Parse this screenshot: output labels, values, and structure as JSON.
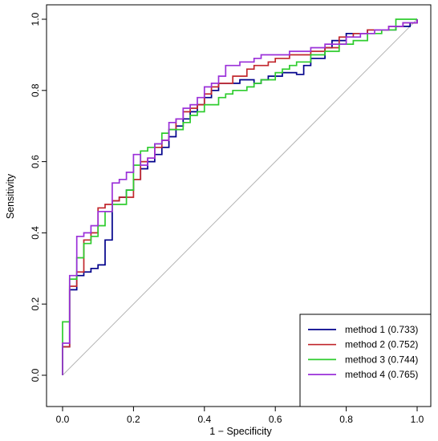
{
  "chart_data": {
    "type": "line",
    "xlabel": "1 − Specificity",
    "ylabel": "Sensitivity",
    "xlim": [
      0,
      1
    ],
    "ylim": [
      0,
      1
    ],
    "x_ticks": [
      "0.0",
      "0.2",
      "0.4",
      "0.6",
      "0.8",
      "1.0"
    ],
    "y_ticks": [
      "0.0",
      "0.2",
      "0.4",
      "0.6",
      "0.8",
      "1.0"
    ],
    "grid": false,
    "legend": "bottom-right",
    "reference_line": {
      "from": [
        0,
        0
      ],
      "to": [
        1,
        1
      ],
      "color": "#b4b4b4"
    },
    "series": [
      {
        "name": "method 1 (0.733)",
        "color": "#00008b",
        "points": [
          [
            0,
            0
          ],
          [
            0,
            0.08
          ],
          [
            0.02,
            0.08
          ],
          [
            0.02,
            0.24
          ],
          [
            0.04,
            0.24
          ],
          [
            0.04,
            0.28
          ],
          [
            0.06,
            0.28
          ],
          [
            0.06,
            0.29
          ],
          [
            0.08,
            0.29
          ],
          [
            0.08,
            0.3
          ],
          [
            0.1,
            0.3
          ],
          [
            0.1,
            0.31
          ],
          [
            0.12,
            0.31
          ],
          [
            0.12,
            0.38
          ],
          [
            0.14,
            0.38
          ],
          [
            0.14,
            0.49
          ],
          [
            0.16,
            0.49
          ],
          [
            0.16,
            0.5
          ],
          [
            0.18,
            0.5
          ],
          [
            0.18,
            0.52
          ],
          [
            0.2,
            0.52
          ],
          [
            0.2,
            0.55
          ],
          [
            0.22,
            0.55
          ],
          [
            0.22,
            0.58
          ],
          [
            0.24,
            0.58
          ],
          [
            0.24,
            0.6
          ],
          [
            0.26,
            0.6
          ],
          [
            0.26,
            0.62
          ],
          [
            0.28,
            0.62
          ],
          [
            0.28,
            0.64
          ],
          [
            0.3,
            0.64
          ],
          [
            0.3,
            0.67
          ],
          [
            0.32,
            0.67
          ],
          [
            0.32,
            0.7
          ],
          [
            0.34,
            0.7
          ],
          [
            0.34,
            0.72
          ],
          [
            0.36,
            0.72
          ],
          [
            0.36,
            0.74
          ],
          [
            0.38,
            0.74
          ],
          [
            0.38,
            0.76
          ],
          [
            0.4,
            0.76
          ],
          [
            0.4,
            0.78
          ],
          [
            0.42,
            0.78
          ],
          [
            0.42,
            0.8
          ],
          [
            0.44,
            0.8
          ],
          [
            0.44,
            0.82
          ],
          [
            0.5,
            0.82
          ],
          [
            0.5,
            0.83
          ],
          [
            0.54,
            0.83
          ],
          [
            0.54,
            0.82
          ],
          [
            0.56,
            0.82
          ],
          [
            0.56,
            0.83
          ],
          [
            0.58,
            0.83
          ],
          [
            0.58,
            0.84
          ],
          [
            0.62,
            0.84
          ],
          [
            0.62,
            0.85
          ],
          [
            0.66,
            0.85
          ],
          [
            0.66,
            0.845
          ],
          [
            0.68,
            0.845
          ],
          [
            0.68,
            0.87
          ],
          [
            0.7,
            0.87
          ],
          [
            0.7,
            0.89
          ],
          [
            0.74,
            0.89
          ],
          [
            0.74,
            0.92
          ],
          [
            0.76,
            0.92
          ],
          [
            0.76,
            0.94
          ],
          [
            0.8,
            0.94
          ],
          [
            0.8,
            0.96
          ],
          [
            0.86,
            0.96
          ],
          [
            0.86,
            0.97
          ],
          [
            0.94,
            0.97
          ],
          [
            0.94,
            0.98
          ],
          [
            0.98,
            0.98
          ],
          [
            0.98,
            0.99
          ],
          [
            1,
            0.99
          ],
          [
            1,
            1
          ]
        ]
      },
      {
        "name": "method 2 (0.752)",
        "color": "#c1272d",
        "points": [
          [
            0,
            0
          ],
          [
            0,
            0.08
          ],
          [
            0.02,
            0.08
          ],
          [
            0.02,
            0.25
          ],
          [
            0.04,
            0.25
          ],
          [
            0.04,
            0.29
          ],
          [
            0.06,
            0.29
          ],
          [
            0.06,
            0.38
          ],
          [
            0.08,
            0.38
          ],
          [
            0.08,
            0.4
          ],
          [
            0.1,
            0.4
          ],
          [
            0.1,
            0.47
          ],
          [
            0.12,
            0.47
          ],
          [
            0.12,
            0.48
          ],
          [
            0.14,
            0.48
          ],
          [
            0.14,
            0.49
          ],
          [
            0.16,
            0.49
          ],
          [
            0.16,
            0.5
          ],
          [
            0.2,
            0.5
          ],
          [
            0.2,
            0.55
          ],
          [
            0.22,
            0.55
          ],
          [
            0.22,
            0.6
          ],
          [
            0.24,
            0.6
          ],
          [
            0.24,
            0.61
          ],
          [
            0.26,
            0.61
          ],
          [
            0.26,
            0.64
          ],
          [
            0.28,
            0.64
          ],
          [
            0.28,
            0.66
          ],
          [
            0.3,
            0.66
          ],
          [
            0.3,
            0.69
          ],
          [
            0.32,
            0.69
          ],
          [
            0.32,
            0.72
          ],
          [
            0.34,
            0.72
          ],
          [
            0.34,
            0.74
          ],
          [
            0.36,
            0.74
          ],
          [
            0.36,
            0.75
          ],
          [
            0.38,
            0.75
          ],
          [
            0.38,
            0.76
          ],
          [
            0.4,
            0.76
          ],
          [
            0.4,
            0.79
          ],
          [
            0.42,
            0.79
          ],
          [
            0.42,
            0.81
          ],
          [
            0.44,
            0.81
          ],
          [
            0.44,
            0.82
          ],
          [
            0.48,
            0.82
          ],
          [
            0.48,
            0.84
          ],
          [
            0.52,
            0.84
          ],
          [
            0.52,
            0.86
          ],
          [
            0.54,
            0.86
          ],
          [
            0.54,
            0.87
          ],
          [
            0.58,
            0.87
          ],
          [
            0.58,
            0.88
          ],
          [
            0.6,
            0.88
          ],
          [
            0.6,
            0.89
          ],
          [
            0.64,
            0.89
          ],
          [
            0.64,
            0.9
          ],
          [
            0.7,
            0.9
          ],
          [
            0.7,
            0.91
          ],
          [
            0.74,
            0.91
          ],
          [
            0.74,
            0.92
          ],
          [
            0.78,
            0.92
          ],
          [
            0.78,
            0.95
          ],
          [
            0.82,
            0.95
          ],
          [
            0.82,
            0.96
          ],
          [
            0.86,
            0.96
          ],
          [
            0.86,
            0.97
          ],
          [
            0.92,
            0.97
          ],
          [
            0.92,
            0.98
          ],
          [
            0.96,
            0.98
          ],
          [
            0.96,
            0.99
          ],
          [
            1,
            0.99
          ],
          [
            1,
            1
          ]
        ]
      },
      {
        "name": "method 3 (0.744)",
        "color": "#2ecc2e",
        "points": [
          [
            0,
            0
          ],
          [
            0,
            0.15
          ],
          [
            0.02,
            0.15
          ],
          [
            0.02,
            0.27
          ],
          [
            0.04,
            0.27
          ],
          [
            0.04,
            0.33
          ],
          [
            0.06,
            0.33
          ],
          [
            0.06,
            0.37
          ],
          [
            0.08,
            0.37
          ],
          [
            0.08,
            0.39
          ],
          [
            0.1,
            0.39
          ],
          [
            0.1,
            0.42
          ],
          [
            0.12,
            0.42
          ],
          [
            0.12,
            0.46
          ],
          [
            0.14,
            0.46
          ],
          [
            0.14,
            0.48
          ],
          [
            0.18,
            0.48
          ],
          [
            0.18,
            0.52
          ],
          [
            0.2,
            0.52
          ],
          [
            0.2,
            0.59
          ],
          [
            0.22,
            0.59
          ],
          [
            0.22,
            0.63
          ],
          [
            0.24,
            0.63
          ],
          [
            0.24,
            0.64
          ],
          [
            0.26,
            0.64
          ],
          [
            0.26,
            0.65
          ],
          [
            0.28,
            0.65
          ],
          [
            0.28,
            0.68
          ],
          [
            0.3,
            0.68
          ],
          [
            0.3,
            0.69
          ],
          [
            0.34,
            0.69
          ],
          [
            0.34,
            0.71
          ],
          [
            0.36,
            0.71
          ],
          [
            0.36,
            0.73
          ],
          [
            0.38,
            0.73
          ],
          [
            0.38,
            0.74
          ],
          [
            0.4,
            0.74
          ],
          [
            0.4,
            0.76
          ],
          [
            0.44,
            0.76
          ],
          [
            0.44,
            0.78
          ],
          [
            0.46,
            0.78
          ],
          [
            0.46,
            0.79
          ],
          [
            0.48,
            0.79
          ],
          [
            0.48,
            0.8
          ],
          [
            0.52,
            0.8
          ],
          [
            0.52,
            0.81
          ],
          [
            0.54,
            0.81
          ],
          [
            0.54,
            0.82
          ],
          [
            0.56,
            0.82
          ],
          [
            0.56,
            0.83
          ],
          [
            0.6,
            0.83
          ],
          [
            0.6,
            0.85
          ],
          [
            0.62,
            0.85
          ],
          [
            0.62,
            0.86
          ],
          [
            0.64,
            0.86
          ],
          [
            0.64,
            0.87
          ],
          [
            0.66,
            0.87
          ],
          [
            0.66,
            0.88
          ],
          [
            0.7,
            0.88
          ],
          [
            0.7,
            0.9
          ],
          [
            0.74,
            0.9
          ],
          [
            0.74,
            0.91
          ],
          [
            0.78,
            0.91
          ],
          [
            0.78,
            0.93
          ],
          [
            0.82,
            0.93
          ],
          [
            0.82,
            0.94
          ],
          [
            0.86,
            0.94
          ],
          [
            0.86,
            0.96
          ],
          [
            0.9,
            0.96
          ],
          [
            0.9,
            0.97
          ],
          [
            0.94,
            0.97
          ],
          [
            0.94,
            1.0
          ],
          [
            1,
            1.0
          ]
        ]
      },
      {
        "name": "method 4 (0.765)",
        "color": "#9b30d9",
        "points": [
          [
            0,
            0
          ],
          [
            0,
            0.09
          ],
          [
            0.02,
            0.09
          ],
          [
            0.02,
            0.28
          ],
          [
            0.04,
            0.28
          ],
          [
            0.04,
            0.39
          ],
          [
            0.06,
            0.39
          ],
          [
            0.06,
            0.4
          ],
          [
            0.08,
            0.4
          ],
          [
            0.08,
            0.42
          ],
          [
            0.1,
            0.42
          ],
          [
            0.1,
            0.46
          ],
          [
            0.14,
            0.46
          ],
          [
            0.14,
            0.54
          ],
          [
            0.16,
            0.54
          ],
          [
            0.16,
            0.55
          ],
          [
            0.18,
            0.55
          ],
          [
            0.18,
            0.57
          ],
          [
            0.2,
            0.57
          ],
          [
            0.2,
            0.62
          ],
          [
            0.22,
            0.62
          ],
          [
            0.22,
            0.59
          ],
          [
            0.24,
            0.59
          ],
          [
            0.24,
            0.61
          ],
          [
            0.26,
            0.61
          ],
          [
            0.26,
            0.65
          ],
          [
            0.28,
            0.65
          ],
          [
            0.28,
            0.66
          ],
          [
            0.3,
            0.66
          ],
          [
            0.3,
            0.71
          ],
          [
            0.32,
            0.71
          ],
          [
            0.32,
            0.72
          ],
          [
            0.34,
            0.72
          ],
          [
            0.34,
            0.75
          ],
          [
            0.36,
            0.75
          ],
          [
            0.36,
            0.76
          ],
          [
            0.38,
            0.76
          ],
          [
            0.38,
            0.78
          ],
          [
            0.4,
            0.78
          ],
          [
            0.4,
            0.81
          ],
          [
            0.42,
            0.81
          ],
          [
            0.42,
            0.82
          ],
          [
            0.44,
            0.82
          ],
          [
            0.44,
            0.84
          ],
          [
            0.46,
            0.84
          ],
          [
            0.46,
            0.87
          ],
          [
            0.5,
            0.87
          ],
          [
            0.5,
            0.88
          ],
          [
            0.54,
            0.88
          ],
          [
            0.54,
            0.89
          ],
          [
            0.56,
            0.89
          ],
          [
            0.56,
            0.9
          ],
          [
            0.64,
            0.9
          ],
          [
            0.64,
            0.91
          ],
          [
            0.7,
            0.91
          ],
          [
            0.7,
            0.92
          ],
          [
            0.74,
            0.92
          ],
          [
            0.74,
            0.93
          ],
          [
            0.8,
            0.93
          ],
          [
            0.8,
            0.95
          ],
          [
            0.84,
            0.95
          ],
          [
            0.84,
            0.96
          ],
          [
            0.88,
            0.96
          ],
          [
            0.88,
            0.97
          ],
          [
            0.92,
            0.97
          ],
          [
            0.92,
            0.98
          ],
          [
            0.96,
            0.98
          ],
          [
            0.96,
            0.99
          ],
          [
            1,
            0.99
          ],
          [
            1,
            1
          ]
        ]
      }
    ]
  }
}
